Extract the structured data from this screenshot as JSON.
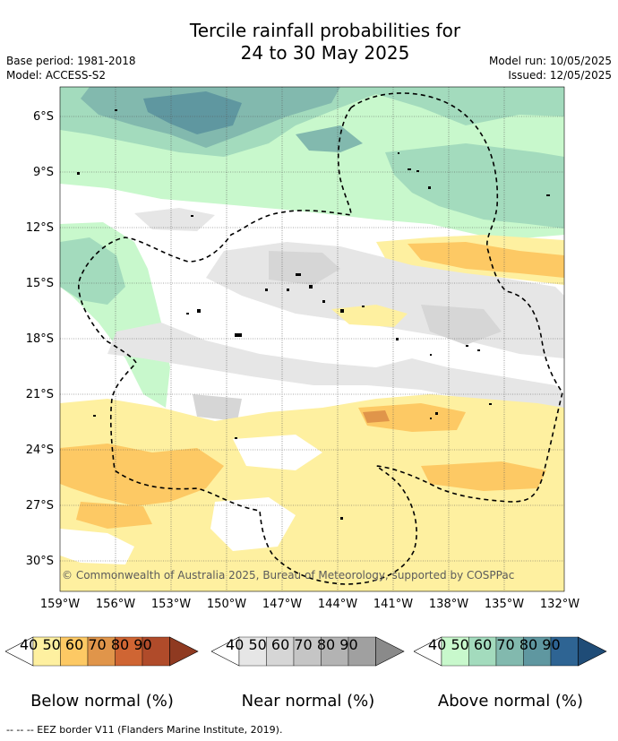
{
  "title_line1": "Tercile rainfall probabilities for",
  "title_line2": "24 to 30 May 2025",
  "base_period": "Base period: 1981-2018",
  "model": "Model: ACCESS-S2",
  "model_run": "Model run: 10/05/2025",
  "issued": "Issued: 12/05/2025",
  "copyright": "© Commonwealth of Australia 2025, Bureau of Meteorology, supported by COSPPac",
  "lat_labels": [
    "6°S",
    "9°S",
    "12°S",
    "15°S",
    "18°S",
    "21°S",
    "24°S",
    "27°S",
    "30°S"
  ],
  "lon_labels": [
    "159°W",
    "156°W",
    "153°W",
    "150°W",
    "147°W",
    "144°W",
    "141°W",
    "138°W",
    "135°W",
    "132°W"
  ],
  "legend_ticks": [
    "40",
    "50",
    "60",
    "70",
    "80",
    "90"
  ],
  "legends": [
    {
      "label": "Below normal (%)",
      "colors": [
        "#fef0a0",
        "#fdc964",
        "#e0954a",
        "#cf6533",
        "#b04b2a",
        "#8f3a21"
      ]
    },
    {
      "label": "Near normal (%)",
      "colors": [
        "#e6e6e6",
        "#d6d6d6",
        "#c5c5c5",
        "#b3b3b3",
        "#a0a0a0",
        "#8a8a8a"
      ]
    },
    {
      "label": "Above normal (%)",
      "colors": [
        "#c8f8cc",
        "#a3dbbd",
        "#82b9ae",
        "#5f97a0",
        "#2e6493",
        "#1f4c77"
      ]
    }
  ],
  "footnote": "-- -- -- EEZ border V11 (Flanders Marine Institute, 2019)."
}
